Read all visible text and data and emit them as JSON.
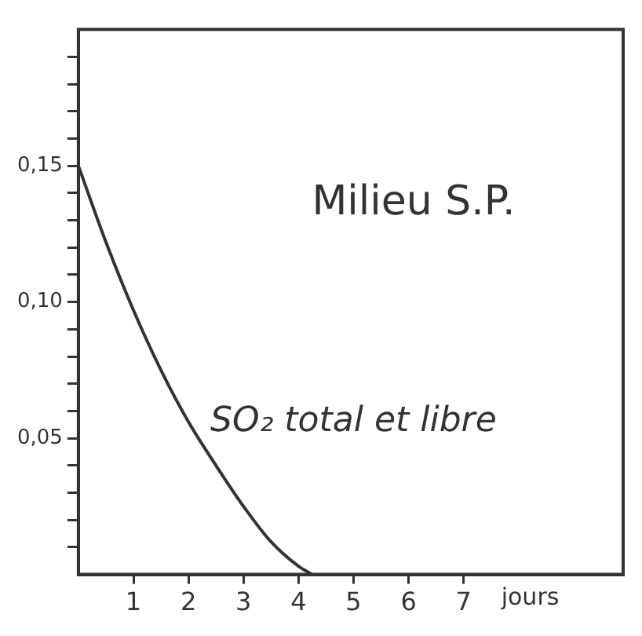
{
  "chart_data": {
    "type": "line",
    "title": "Milieu S.P.",
    "xlabel": "jours",
    "xlim": [
      0,
      9.9
    ],
    "ylim": [
      0,
      0.2
    ],
    "xticks": [
      1,
      2,
      3,
      4,
      5,
      6,
      7
    ],
    "yticks": [
      {
        "value": 0.01,
        "label": null
      },
      {
        "value": 0.02,
        "label": null
      },
      {
        "value": 0.03,
        "label": null
      },
      {
        "value": 0.04,
        "label": null
      },
      {
        "value": 0.05,
        "label": "0,05"
      },
      {
        "value": 0.06,
        "label": null
      },
      {
        "value": 0.07,
        "label": null
      },
      {
        "value": 0.08,
        "label": null
      },
      {
        "value": 0.09,
        "label": null
      },
      {
        "value": 0.1,
        "label": "0,10"
      },
      {
        "value": 0.11,
        "label": null
      },
      {
        "value": 0.12,
        "label": null
      },
      {
        "value": 0.13,
        "label": null
      },
      {
        "value": 0.14,
        "label": null
      },
      {
        "value": 0.15,
        "label": "0,15"
      },
      {
        "value": 0.16,
        "label": null
      },
      {
        "value": 0.17,
        "label": null
      },
      {
        "value": 0.18,
        "label": null
      },
      {
        "value": 0.19,
        "label": null
      }
    ],
    "series": [
      {
        "name": "SO₂ total et libre",
        "color": "#333333",
        "x": [
          0,
          0.5,
          1,
          1.5,
          2,
          2.5,
          3,
          3.5,
          4,
          4.25
        ],
        "values": [
          0.15,
          0.122,
          0.097,
          0.075,
          0.056,
          0.04,
          0.025,
          0.012,
          0.003,
          0
        ]
      }
    ],
    "grid": false,
    "legend": false,
    "marker": "none",
    "line_style": "solid"
  }
}
